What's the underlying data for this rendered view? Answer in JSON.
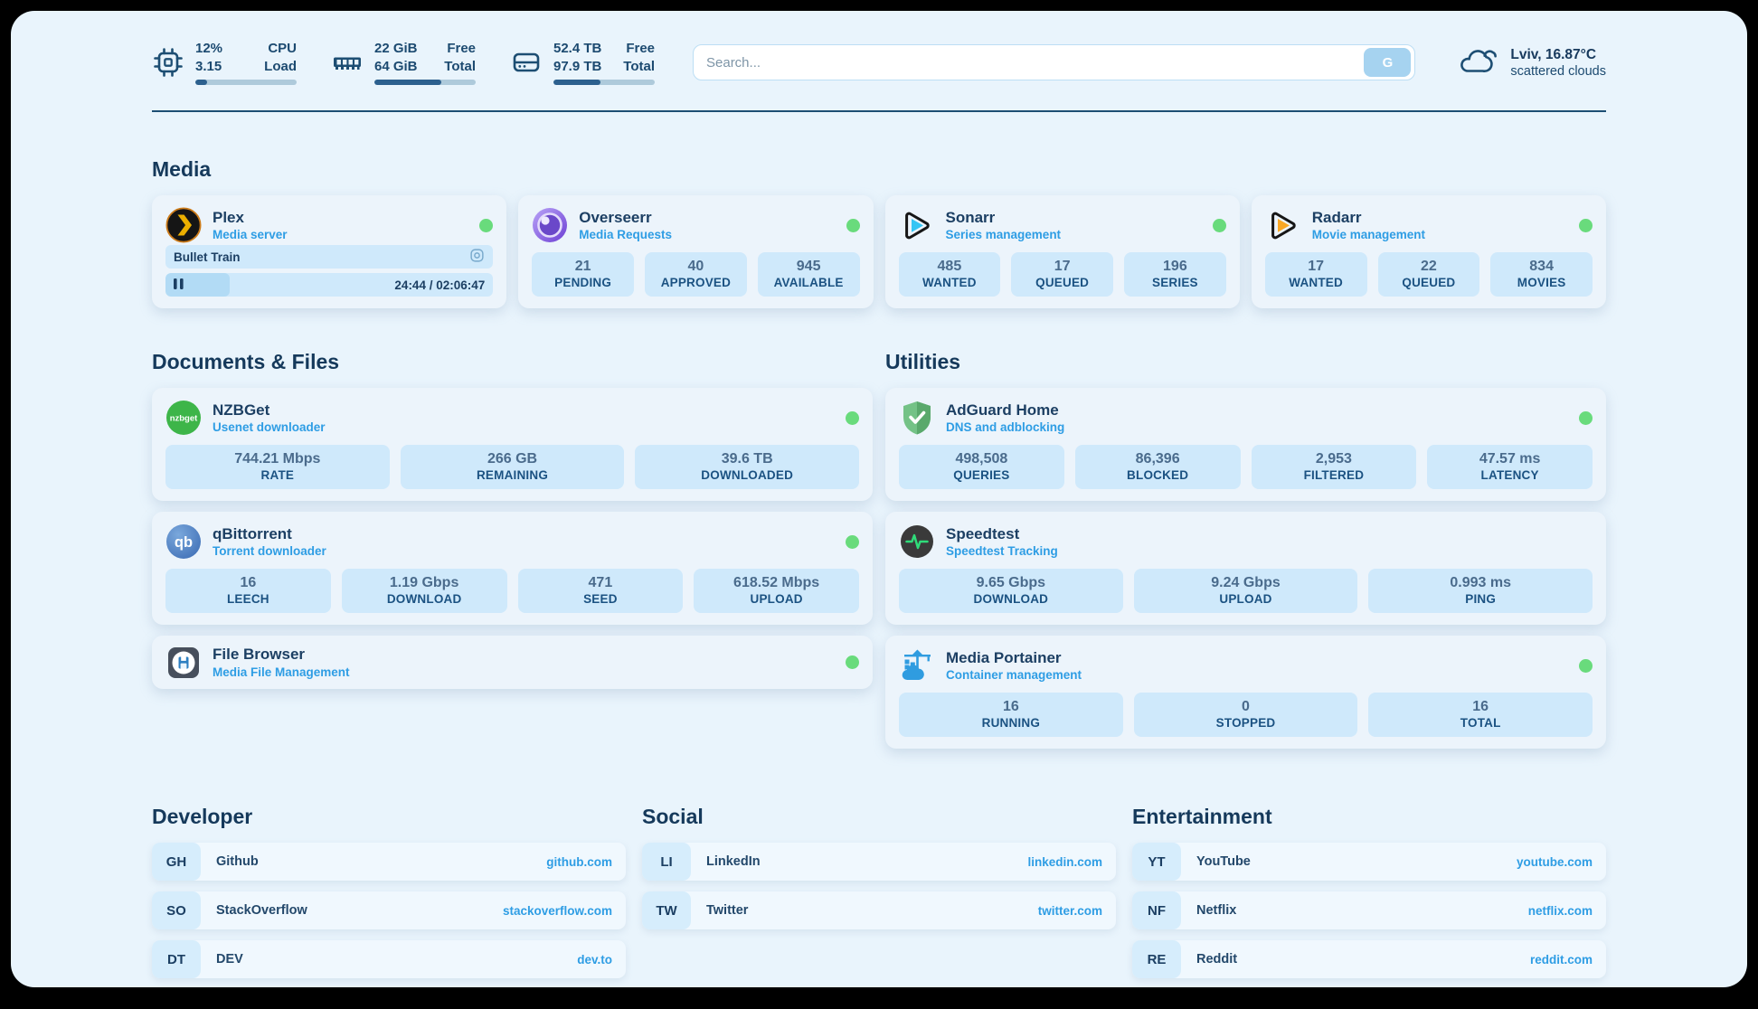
{
  "colors": {
    "status_green": "#69db7c",
    "accent_blue": "#2e9de4",
    "navy": "#1c4a70",
    "tile_blue": "#cfe9fb"
  },
  "header": {
    "metrics": [
      {
        "name": "cpu",
        "line1": "12%",
        "line2": "3.15",
        "label1": "CPU",
        "label2": "Load",
        "progress": 12
      },
      {
        "name": "memory",
        "line1": "22 GiB",
        "line2": "64 GiB",
        "label1": "Free",
        "label2": "Total",
        "progress": 66
      },
      {
        "name": "disk",
        "line1": "52.4 TB",
        "line2": "97.9 TB",
        "label1": "Free",
        "label2": "Total",
        "progress": 46
      }
    ],
    "search": {
      "placeholder": "Search...",
      "button_label": "G"
    },
    "weather": {
      "summary": "Lviv, 16.87°C",
      "condition": "scattered clouds"
    }
  },
  "media": {
    "title": "Media",
    "plex": {
      "name": "Plex",
      "subtitle": "Media server",
      "now_playing": "Bullet Train",
      "time_display": "24:44 / 02:06:47",
      "progress": 19.5
    },
    "overseerr": {
      "name": "Overseerr",
      "subtitle": "Media Requests",
      "stats": [
        {
          "value": "21",
          "label": "PENDING"
        },
        {
          "value": "40",
          "label": "APPROVED"
        },
        {
          "value": "945",
          "label": "AVAILABLE"
        }
      ]
    },
    "sonarr": {
      "name": "Sonarr",
      "subtitle": "Series management",
      "stats": [
        {
          "value": "485",
          "label": "WANTED"
        },
        {
          "value": "17",
          "label": "QUEUED"
        },
        {
          "value": "196",
          "label": "SERIES"
        }
      ]
    },
    "radarr": {
      "name": "Radarr",
      "subtitle": "Movie management",
      "stats": [
        {
          "value": "17",
          "label": "WANTED"
        },
        {
          "value": "22",
          "label": "QUEUED"
        },
        {
          "value": "834",
          "label": "MOVIES"
        }
      ]
    }
  },
  "documents": {
    "title": "Documents & Files",
    "nzbget": {
      "name": "NZBGet",
      "subtitle": "Usenet downloader",
      "stats": [
        {
          "value": "744.21 Mbps",
          "label": "RATE"
        },
        {
          "value": "266 GB",
          "label": "REMAINING"
        },
        {
          "value": "39.6 TB",
          "label": "DOWNLOADED"
        }
      ]
    },
    "qbittorrent": {
      "name": "qBittorrent",
      "subtitle": "Torrent downloader",
      "stats": [
        {
          "value": "16",
          "label": "LEECH"
        },
        {
          "value": "1.19 Gbps",
          "label": "DOWNLOAD"
        },
        {
          "value": "471",
          "label": "SEED"
        },
        {
          "value": "618.52 Mbps",
          "label": "UPLOAD"
        }
      ]
    },
    "filebrowser": {
      "name": "File Browser",
      "subtitle": "Media File Management"
    }
  },
  "utilities": {
    "title": "Utilities",
    "adguard": {
      "name": "AdGuard Home",
      "subtitle": "DNS and adblocking",
      "stats": [
        {
          "value": "498,508",
          "label": "QUERIES"
        },
        {
          "value": "86,396",
          "label": "BLOCKED"
        },
        {
          "value": "2,953",
          "label": "FILTERED"
        },
        {
          "value": "47.57 ms",
          "label": "LATENCY"
        }
      ]
    },
    "speedtest": {
      "name": "Speedtest",
      "subtitle": "Speedtest Tracking",
      "stats": [
        {
          "value": "9.65 Gbps",
          "label": "DOWNLOAD"
        },
        {
          "value": "9.24 Gbps",
          "label": "UPLOAD"
        },
        {
          "value": "0.993 ms",
          "label": "PING"
        }
      ]
    },
    "portainer": {
      "name": "Media Portainer",
      "subtitle": "Container management",
      "stats": [
        {
          "value": "16",
          "label": "RUNNING"
        },
        {
          "value": "0",
          "label": "STOPPED"
        },
        {
          "value": "16",
          "label": "TOTAL"
        }
      ]
    }
  },
  "bookmarks": [
    {
      "title": "Developer",
      "items": [
        {
          "abbr": "GH",
          "name": "Github",
          "url": "github.com"
        },
        {
          "abbr": "SO",
          "name": "StackOverflow",
          "url": "stackoverflow.com"
        },
        {
          "abbr": "DT",
          "name": "DEV",
          "url": "dev.to"
        }
      ]
    },
    {
      "title": "Social",
      "items": [
        {
          "abbr": "LI",
          "name": "LinkedIn",
          "url": "linkedin.com"
        },
        {
          "abbr": "TW",
          "name": "Twitter",
          "url": "twitter.com"
        }
      ]
    },
    {
      "title": "Entertainment",
      "items": [
        {
          "abbr": "YT",
          "name": "YouTube",
          "url": "youtube.com"
        },
        {
          "abbr": "NF",
          "name": "Netflix",
          "url": "netflix.com"
        },
        {
          "abbr": "RE",
          "name": "Reddit",
          "url": "reddit.com"
        }
      ]
    }
  ]
}
